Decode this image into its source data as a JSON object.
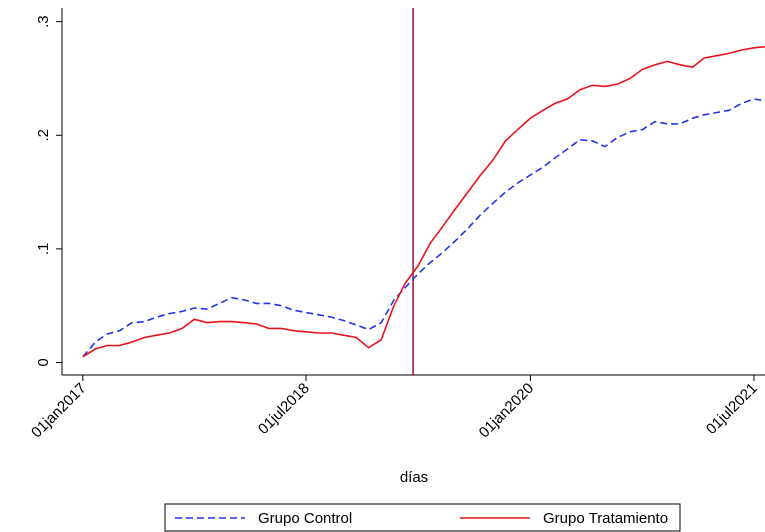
{
  "chart_data": {
    "type": "line",
    "x_label": "días",
    "x": [
      "2017-01-01",
      "2017-02-01",
      "2017-03-01",
      "2017-04-01",
      "2017-05-01",
      "2017-06-01",
      "2017-07-01",
      "2017-08-01",
      "2017-09-01",
      "2017-10-01",
      "2017-11-01",
      "2017-12-01",
      "2018-01-01",
      "2018-02-01",
      "2018-03-01",
      "2018-04-01",
      "2018-05-01",
      "2018-06-01",
      "2018-07-01",
      "2018-08-01",
      "2018-09-01",
      "2018-10-01",
      "2018-11-01",
      "2018-12-01",
      "2019-01-01",
      "2019-02-01",
      "2019-03-01",
      "2019-04-01",
      "2019-05-01",
      "2019-06-01",
      "2019-07-01",
      "2019-08-01",
      "2019-09-01",
      "2019-10-01",
      "2019-11-01",
      "2019-12-01",
      "2020-01-01",
      "2020-02-01",
      "2020-03-01",
      "2020-04-01",
      "2020-05-01",
      "2020-06-01",
      "2020-07-01",
      "2020-08-01",
      "2020-09-01",
      "2020-10-01",
      "2020-11-01",
      "2020-12-01",
      "2021-01-01",
      "2021-02-01",
      "2021-03-01",
      "2021-04-01",
      "2021-05-01",
      "2021-06-01",
      "2021-07-01",
      "2021-08-01"
    ],
    "series": [
      {
        "name": "Grupo Control",
        "color": "#2233ee",
        "dash": true,
        "values": [
          0.005,
          0.018,
          0.025,
          0.028,
          0.035,
          0.036,
          0.04,
          0.043,
          0.045,
          0.048,
          0.047,
          0.052,
          0.057,
          0.055,
          0.052,
          0.052,
          0.05,
          0.046,
          0.044,
          0.042,
          0.04,
          0.037,
          0.033,
          0.029,
          0.035,
          0.055,
          0.066,
          0.078,
          0.088,
          0.097,
          0.107,
          0.118,
          0.13,
          0.14,
          0.15,
          0.158,
          0.165,
          0.172,
          0.18,
          0.188,
          0.196,
          0.195,
          0.19,
          0.198,
          0.203,
          0.205,
          0.212,
          0.21,
          0.21,
          0.215,
          0.218,
          0.22,
          0.222,
          0.228,
          0.232,
          0.23
        ]
      },
      {
        "name": "Grupo Tratamiento",
        "color": "#e8141e",
        "dash": false,
        "values": [
          0.005,
          0.012,
          0.015,
          0.015,
          0.018,
          0.022,
          0.024,
          0.026,
          0.03,
          0.038,
          0.035,
          0.036,
          0.036,
          0.035,
          0.034,
          0.03,
          0.03,
          0.028,
          0.027,
          0.026,
          0.026,
          0.024,
          0.022,
          0.013,
          0.02,
          0.05,
          0.07,
          0.085,
          0.105,
          0.12,
          0.135,
          0.15,
          0.165,
          0.178,
          0.195,
          0.205,
          0.215,
          0.222,
          0.228,
          0.232,
          0.24,
          0.244,
          0.243,
          0.245,
          0.25,
          0.258,
          0.262,
          0.265,
          0.262,
          0.26,
          0.268,
          0.27,
          0.272,
          0.275,
          0.277,
          0.278
        ]
      }
    ],
    "vline": "2019-03-20",
    "vline_color": "#a01030",
    "xlim": [
      "2016-11-11",
      "2021-07-28"
    ],
    "xticks": [
      {
        "value": "2017-01-01",
        "label": "01jan2017"
      },
      {
        "value": "2018-07-01",
        "label": "01jul2018"
      },
      {
        "value": "2020-01-01",
        "label": "01jan2020"
      },
      {
        "value": "2021-07-01",
        "label": "01jul2021"
      }
    ],
    "ylim": [
      -0.011,
      0.312
    ],
    "yticks": [
      0,
      {
        "value": 0.1,
        "label": ".1"
      },
      {
        "value": 0.2,
        "label": ".2"
      },
      {
        "value": 0.3,
        "label": ".3"
      }
    ],
    "legend": "bottom"
  }
}
